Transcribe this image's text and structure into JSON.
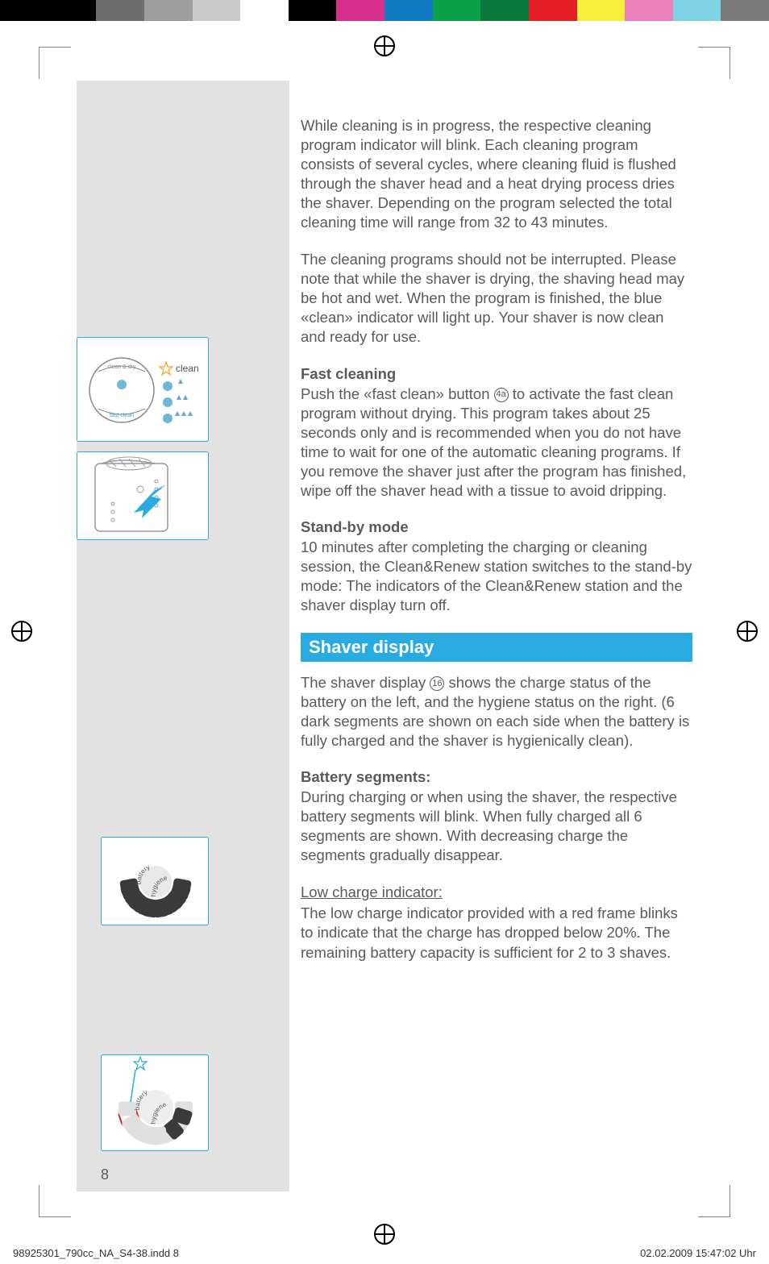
{
  "colorBar": [
    "#000000",
    "#000000",
    "#6d6d6d",
    "#9e9e9e",
    "#c9c9c9",
    "#ffffff",
    "#000000",
    "#d62f8e",
    "#0f7bc2",
    "#0aa14a",
    "#0a7a3c",
    "#e61e25",
    "#f7ee3c",
    "#ea7fb9",
    "#7fd3e6",
    "#7a7a7a"
  ],
  "para1": "While cleaning is in progress, the respective cleaning program indicator will blink. Each cleaning program consists of several cycles, where cleaning fluid is flushed through the shaver head and a heat drying process dries the shaver. Depending on the program selected the total cleaning time will range from 32 to 43 minutes.",
  "para2": "The cleaning programs should not be interrupted. Please note that while the shaver is drying, the shaving head may be hot and wet. When the program is finished, the blue «clean» indicator will light up. Your shaver is now clean and ready for use.",
  "fastHead": "Fast cleaning",
  "fastText1a": "Push the «fast clean» button ",
  "fastRef": "4a",
  "fastText1b": " to activate the fast clean program without drying. This program takes about 25 seconds only and is recommended when you do not have time to wait for one of the automatic cleaning programs. If you remove the shaver just after the program has finished, wipe off the shaver head with a tissue to avoid dripping.",
  "standbyHead": "Stand-by mode",
  "standbyText": "10 minutes after completing the charging or cleaning session, the Clean&Renew station switches to the stand-by mode: The indicators of the Clean&Renew station and the shaver display turn off.",
  "bannerText": "Shaver display",
  "displayText1a": "The shaver display ",
  "displayRef": "16",
  "displayText1b": " shows the charge status of the battery on the left, and the hygiene status on the right. (6 dark segments are shown on each side when the battery is fully charged and the shaver is hygienically clean).",
  "batteryHead": "Battery segments:",
  "batteryText": "During charging or when using the shaver, the respective battery segments will blink. When fully charged all 6 segments are shown. With decreasing charge the segments gradually disappear.",
  "lowHead": "Low charge indicator:",
  "lowText": "The low charge indicator provided with a red frame blinks to indicate that the charge has dropped below 20%. The remaining battery capacity is sufficient for 2 to 3 shaves.",
  "pageNum": "8",
  "footerLeft": "98925301_790cc_NA_S4-38.indd   8",
  "footerRight": "02.02.2009   15:47:02 Uhr",
  "diag1": {
    "clean": "clean",
    "cleanDry": "clean & dry",
    "fastClean": "fast clean"
  },
  "diag3": {
    "battery": "battery",
    "hygiene": "hygiene"
  },
  "diag4": {
    "battery": "battery",
    "hygiene": "hygiene"
  }
}
